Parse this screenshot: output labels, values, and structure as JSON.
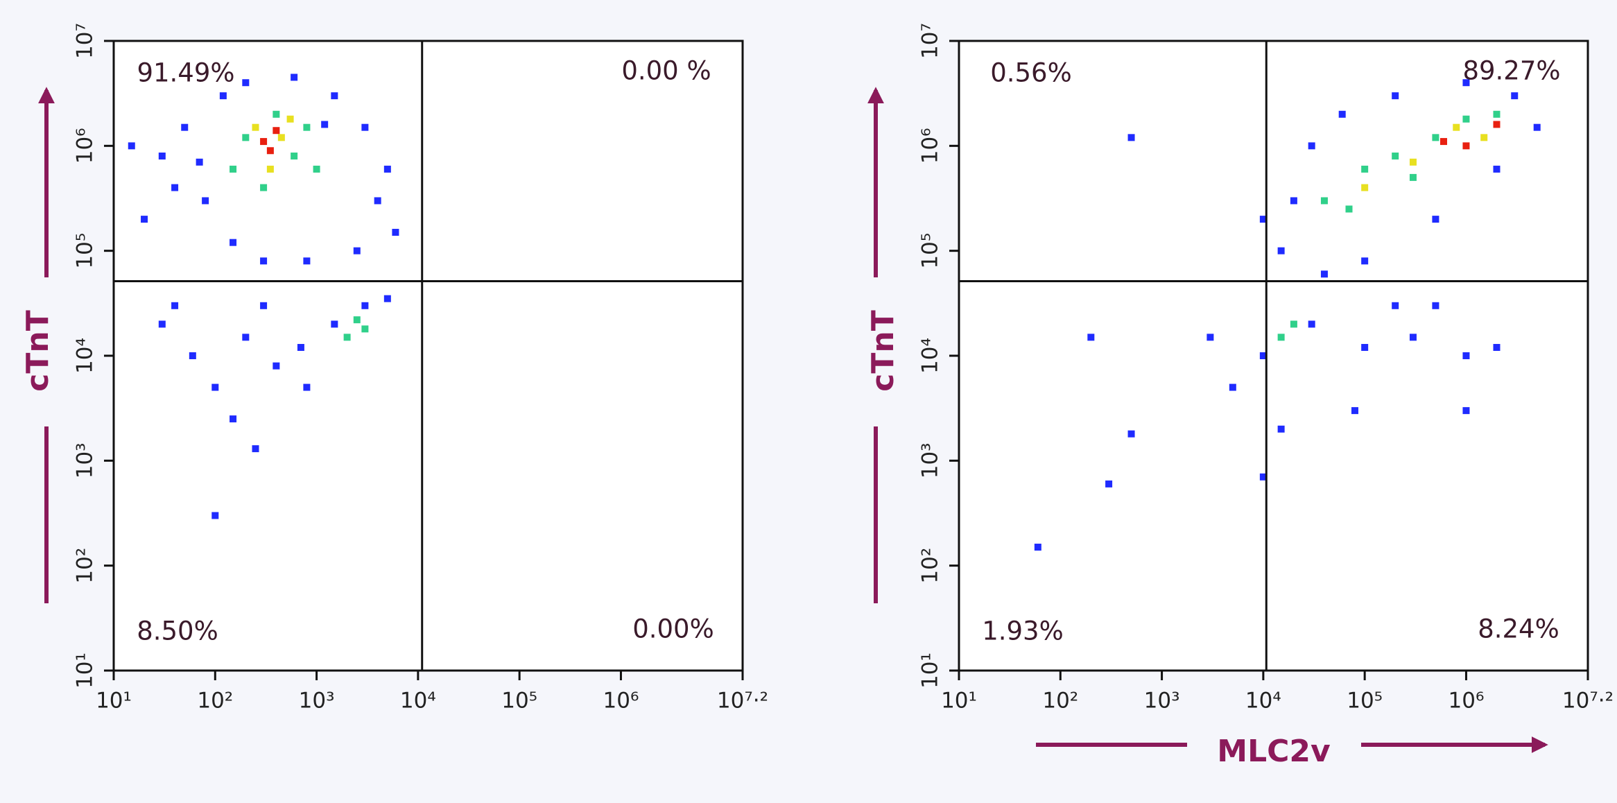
{
  "chart_data": [
    {
      "type": "scatter",
      "ylabel": "cTnT",
      "xscale": "log",
      "yscale": "log",
      "xlim": [
        10,
        15848932
      ],
      "ylim": [
        10,
        10000000
      ],
      "xticks": [
        {
          "value": 10,
          "label": "10¹"
        },
        {
          "value": 100,
          "label": "10²"
        },
        {
          "value": 1000,
          "label": "10³"
        },
        {
          "value": 10000,
          "label": "10⁴"
        },
        {
          "value": 100000,
          "label": "10⁵"
        },
        {
          "value": 1000000,
          "label": "10⁶"
        },
        {
          "value": 15848932,
          "label": "10⁷·²"
        }
      ],
      "yticks": [
        {
          "value": 10,
          "label": "10¹"
        },
        {
          "value": 100,
          "label": "10²"
        },
        {
          "value": 1000,
          "label": "10³"
        },
        {
          "value": 10000,
          "label": "10⁴"
        },
        {
          "value": 100000,
          "label": "10⁵"
        },
        {
          "value": 1000000,
          "label": "10⁶"
        },
        {
          "value": 10000000,
          "label": "10⁷"
        }
      ],
      "gate": {
        "x": 10965,
        "y": 51286
      },
      "annotations": [
        "91.49%",
        "0.00 %",
        "8.50%",
        "0.00%"
      ],
      "series": [
        {
          "color": "#1f2bff",
          "x": [
            20,
            30,
            50,
            80,
            15,
            120,
            200,
            600,
            1500,
            3000,
            5000,
            6000,
            2500,
            800,
            150,
            40,
            1200,
            300,
            70,
            4000,
            30,
            60,
            100,
            200,
            400,
            700,
            1500,
            3000,
            5000,
            300,
            150,
            250,
            100,
            800,
            40
          ],
          "y": [
            200000,
            800000,
            1500000,
            300000,
            1000000,
            3000000,
            4000000,
            4500000,
            3000000,
            1500000,
            600000,
            150000,
            100000,
            80000,
            120000,
            400000,
            1600000,
            80000,
            700000,
            300000,
            20000,
            10000,
            5000,
            15000,
            8000,
            12000,
            20000,
            30000,
            35000,
            30000,
            2500,
            1300,
            300,
            5000,
            30000
          ]
        },
        {
          "color": "#30d08a",
          "x": [
            200,
            400,
            600,
            150,
            800,
            300,
            1000,
            2000,
            2500,
            3000
          ],
          "y": [
            1200000,
            2000000,
            800000,
            600000,
            1500000,
            400000,
            600000,
            15000,
            22000,
            18000
          ]
        },
        {
          "color": "#e8e020",
          "x": [
            250,
            450,
            350,
            550
          ],
          "y": [
            1500000,
            1200000,
            600000,
            1800000
          ]
        },
        {
          "color": "#e82010",
          "x": [
            300,
            400,
            350
          ],
          "y": [
            1100000,
            1400000,
            900000
          ]
        }
      ]
    },
    {
      "type": "scatter",
      "xlabel": "MLC2v",
      "ylabel": "cTnT",
      "xscale": "log",
      "yscale": "log",
      "xlim": [
        10,
        15848932
      ],
      "ylim": [
        10,
        10000000
      ],
      "xticks": [
        {
          "value": 10,
          "label": "10¹"
        },
        {
          "value": 100,
          "label": "10²"
        },
        {
          "value": 1000,
          "label": "10³"
        },
        {
          "value": 10000,
          "label": "10⁴"
        },
        {
          "value": 100000,
          "label": "10⁵"
        },
        {
          "value": 1000000,
          "label": "10⁶"
        },
        {
          "value": 15848932,
          "label": "10⁷·²"
        }
      ],
      "yticks": [
        {
          "value": 10,
          "label": "10¹"
        },
        {
          "value": 100,
          "label": "10²"
        },
        {
          "value": 1000,
          "label": "10³"
        },
        {
          "value": 10000,
          "label": "10⁴"
        },
        {
          "value": 100000,
          "label": "10⁵"
        },
        {
          "value": 1000000,
          "label": "10⁶"
        },
        {
          "value": 10000000,
          "label": "10⁷"
        }
      ],
      "gate": {
        "x": 10715,
        "y": 51286
      },
      "annotations": [
        "0.56%",
        "89.27%",
        "1.93%",
        "8.24%"
      ],
      "series": [
        {
          "color": "#1f2bff",
          "x": [
            15000,
            20000,
            30000,
            60000,
            200000,
            1000000,
            3000000,
            5000000,
            2000000,
            500000,
            100000,
            10000,
            40000,
            500,
            60,
            300,
            500,
            200,
            3000,
            5000,
            10000,
            30000,
            100000,
            300000,
            1000000,
            2000000,
            500000,
            80000,
            15000,
            1000000,
            10000,
            200000
          ],
          "y": [
            100000,
            300000,
            1000000,
            2000000,
            3000000,
            4000000,
            3000000,
            1500000,
            600000,
            200000,
            80000,
            200000,
            60000,
            1200000,
            150,
            600,
            1800,
            15000,
            15000,
            5000,
            10000,
            20000,
            12000,
            15000,
            10000,
            12000,
            30000,
            3000,
            2000,
            3000,
            700,
            30000
          ]
        },
        {
          "color": "#30d08a",
          "x": [
            40000,
            100000,
            200000,
            500000,
            1000000,
            2000000,
            70000,
            300000,
            15000,
            20000
          ],
          "y": [
            300000,
            600000,
            800000,
            1200000,
            1800000,
            2000000,
            250000,
            500000,
            15000,
            20000
          ]
        },
        {
          "color": "#e8e020",
          "x": [
            300000,
            800000,
            1500000,
            100000
          ],
          "y": [
            700000,
            1500000,
            1200000,
            400000
          ]
        },
        {
          "color": "#e82010",
          "x": [
            1000000,
            2000000,
            600000
          ],
          "y": [
            1000000,
            1600000,
            1100000
          ]
        }
      ]
    }
  ]
}
